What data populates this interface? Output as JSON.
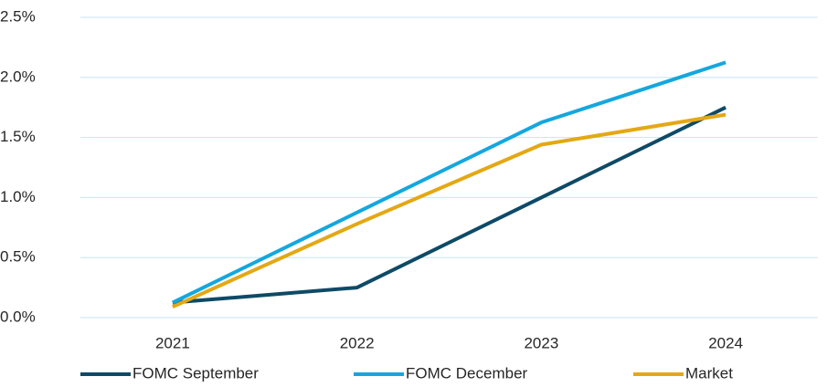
{
  "chart_data": {
    "type": "line",
    "categories": [
      "2021",
      "2022",
      "2023",
      "2024"
    ],
    "series": [
      {
        "name": "FOMC September",
        "color": "#0e4a66",
        "values": [
          0.125,
          0.25,
          1.0,
          1.75
        ]
      },
      {
        "name": "FOMC December",
        "color": "#14a7de",
        "values": [
          0.125,
          0.875,
          1.625,
          2.125
        ]
      },
      {
        "name": "Market",
        "color": "#e3a814",
        "values": [
          0.09,
          0.78,
          1.44,
          1.69
        ]
      }
    ],
    "ylim": [
      0,
      2.5
    ],
    "yticks": [
      {
        "value": 0,
        "label": "0.0%"
      },
      {
        "value": 0.5,
        "label": "0.5%"
      },
      {
        "value": 1.0,
        "label": "1.0%"
      },
      {
        "value": 1.5,
        "label": "1.5%"
      },
      {
        "value": 2.0,
        "label": "2.0%"
      },
      {
        "value": 2.5,
        "label": "2.5%"
      }
    ],
    "grid": true,
    "legend": "bottom"
  }
}
